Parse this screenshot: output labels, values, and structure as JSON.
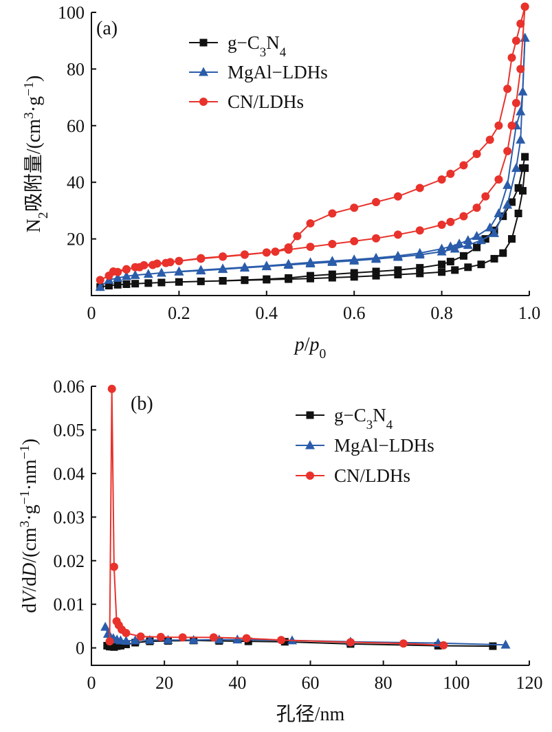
{
  "chart_data": [
    {
      "type": "line",
      "panel_label": "(a)",
      "xlabel": "p/p0",
      "ylabel": "N2吸附量/(cm3·g−1)",
      "xlim": [
        0,
        1.0
      ],
      "ylim": [
        0,
        100
      ],
      "xticks": [
        "0",
        "0.2",
        "0.4",
        "0.6",
        "0.8",
        "1.0"
      ],
      "yticks": [
        "20",
        "40",
        "60",
        "80",
        "100"
      ],
      "xtick_values": [
        0,
        0.2,
        0.4,
        0.6,
        0.8,
        1.0
      ],
      "ytick_values": [
        20,
        40,
        60,
        80,
        100
      ],
      "legend_position": "top-right",
      "series": [
        {
          "name": "g-C3N4",
          "color": "#111111",
          "marker": "square",
          "adsorption": {
            "x": [
              0.02,
              0.04,
              0.06,
              0.08,
              0.1,
              0.13,
              0.16,
              0.2,
              0.25,
              0.3,
              0.35,
              0.4,
              0.45,
              0.5,
              0.55,
              0.6,
              0.65,
              0.7,
              0.75,
              0.8,
              0.83,
              0.86,
              0.89,
              0.92,
              0.94,
              0.96,
              0.975,
              0.985,
              0.99
            ],
            "y": [
              3,
              3.5,
              3.8,
              4,
              4.2,
              4.4,
              4.6,
              4.8,
              5,
              5.2,
              5.4,
              5.6,
              5.8,
              6,
              6.3,
              6.6,
              7,
              7.4,
              7.8,
              8.3,
              9,
              10,
              11,
              13,
              15,
              20,
              29,
              37,
              45
            ]
          },
          "desorption": {
            "x": [
              0.99,
              0.985,
              0.975,
              0.96,
              0.94,
              0.92,
              0.9,
              0.88,
              0.85,
              0.82,
              0.8,
              0.75,
              0.7,
              0.65,
              0.6,
              0.55,
              0.5,
              0.45,
              0.4,
              0.35,
              0.3
            ],
            "y": [
              49,
              45,
              38,
              33,
              28,
              23,
              20,
              17,
              14,
              12,
              11,
              9.8,
              9,
              8.5,
              8,
              7.5,
              7,
              6.2,
              5.8,
              5.5,
              5.2
            ]
          }
        },
        {
          "name": "MgAl-LDHs",
          "color": "#2a5caa",
          "marker": "triangle",
          "adsorption": {
            "x": [
              0.02,
              0.04,
              0.06,
              0.08,
              0.1,
              0.13,
              0.16,
              0.2,
              0.25,
              0.3,
              0.35,
              0.4,
              0.45,
              0.5,
              0.55,
              0.6,
              0.65,
              0.7,
              0.75,
              0.8,
              0.83,
              0.86,
              0.89,
              0.92,
              0.95,
              0.97,
              0.98,
              0.99
            ],
            "y": [
              3,
              5.5,
              6.2,
              6.8,
              7.2,
              7.6,
              8,
              8.4,
              8.8,
              9.3,
              9.8,
              10.3,
              10.8,
              11.3,
              11.8,
              12.3,
              12.9,
              13.6,
              14.4,
              15.5,
              16.5,
              17.8,
              19.5,
              22,
              32,
              45,
              55,
              91
            ]
          },
          "desorption": {
            "x": [
              0.99,
              0.985,
              0.98,
              0.97,
              0.95,
              0.93,
              0.91,
              0.88,
              0.86,
              0.84,
              0.82,
              0.8,
              0.75,
              0.7,
              0.65,
              0.6,
              0.55,
              0.5,
              0.45,
              0.4,
              0.35,
              0.3,
              0.25,
              0.2
            ],
            "y": [
              91,
              72,
              65,
              60,
              39,
              29,
              24,
              21,
              19.5,
              18.3,
              17.3,
              16.5,
              15,
              14,
              13.3,
              12.7,
              12.2,
              11.7,
              11.1,
              10.5,
              10,
              9.5,
              9,
              8.5
            ]
          }
        },
        {
          "name": "CN/LDHs",
          "color": "#e8322b",
          "marker": "circle",
          "adsorption": {
            "x": [
              0.02,
              0.04,
              0.06,
              0.08,
              0.1,
              0.12,
              0.15,
              0.18,
              0.2,
              0.25,
              0.3,
              0.35,
              0.4,
              0.45,
              0.5,
              0.55,
              0.6,
              0.65,
              0.7,
              0.75,
              0.8,
              0.82,
              0.85,
              0.88,
              0.9,
              0.93,
              0.95,
              0.96,
              0.97,
              0.98,
              0.99
            ],
            "y": [
              5.5,
              7,
              8.3,
              9.2,
              10,
              10.7,
              11.3,
              11.8,
              12.2,
              13,
              13.7,
              14.4,
              15.2,
              16.2,
              17.2,
              18.2,
              19.2,
              20.2,
              21.5,
              23,
              25,
              26,
              28,
              31,
              35,
              41,
              51,
              60,
              68,
              80,
              102
            ]
          },
          "desorption": {
            "x": [
              0.99,
              0.98,
              0.97,
              0.96,
              0.95,
              0.93,
              0.91,
              0.88,
              0.85,
              0.82,
              0.8,
              0.75,
              0.7,
              0.65,
              0.6,
              0.55,
              0.5,
              0.47,
              0.45,
              0.42,
              0.4,
              0.35,
              0.3,
              0.25,
              0.2,
              0.17,
              0.14,
              0.11,
              0.08,
              0.05
            ],
            "y": [
              102,
              96,
              90,
              84,
              73,
              60,
              55,
              50,
              46,
              43,
              41,
              38,
              35,
              33,
              31,
              29,
              25.5,
              21,
              17,
              15.5,
              15.2,
              14.5,
              13.8,
              13.2,
              12.2,
              11.5,
              10.8,
              10,
              9.3,
              8.5
            ]
          }
        }
      ]
    },
    {
      "type": "line",
      "panel_label": "(b)",
      "xlabel": "孔径/nm",
      "ylabel": "dV/dD/(cm3·g−1·nm−1)",
      "xlim": [
        0,
        120
      ],
      "ylim": [
        -0.004,
        0.06
      ],
      "xticks": [
        "0",
        "20",
        "40",
        "60",
        "80",
        "100",
        "120"
      ],
      "yticks": [
        "0",
        "0.01",
        "0.02",
        "0.03",
        "0.04",
        "0.05",
        "0.06"
      ],
      "xtick_values": [
        0,
        20,
        40,
        60,
        80,
        100,
        120
      ],
      "ytick_values": [
        0,
        0.01,
        0.02,
        0.03,
        0.04,
        0.05,
        0.06
      ],
      "legend_position": "top-right",
      "series": [
        {
          "name": "g-C3N4",
          "color": "#111111",
          "marker": "square",
          "x": [
            4.3,
            5,
            5.6,
            6.2,
            7,
            8,
            9.5,
            12,
            16,
            21,
            28,
            35,
            43,
            53,
            71,
            95,
            110
          ],
          "y": [
            0.0005,
            0.0003,
            0.0003,
            0.0002,
            0.0004,
            0.0005,
            0.0008,
            0.0012,
            0.0015,
            0.0016,
            0.0017,
            0.0016,
            0.0015,
            0.0014,
            0.0009,
            0.0005,
            0.0004
          ]
        },
        {
          "name": "MgAl-LDHs",
          "color": "#2a5caa",
          "marker": "triangle",
          "x": [
            3.8,
            4.5,
            5.2,
            6,
            7,
            8,
            9.5,
            12,
            16,
            21,
            28,
            35,
            40,
            55,
            71,
            95,
            113.5
          ],
          "y": [
            0.0048,
            0.0032,
            0.0025,
            0.0022,
            0.0019,
            0.0017,
            0.0016,
            0.0017,
            0.0018,
            0.0018,
            0.0018,
            0.0019,
            0.0019,
            0.0017,
            0.0014,
            0.0011,
            0.0007
          ]
        },
        {
          "name": "CN/LDHs",
          "color": "#e8322b",
          "marker": "circle",
          "x": [
            5,
            5.6,
            6.2,
            6.9,
            7.5,
            8.3,
            9.5,
            13.5,
            19,
            25,
            33.5,
            42.5,
            52,
            71,
            85.5,
            96.5
          ],
          "y": [
            0.0015,
            0.0594,
            0.0186,
            0.0061,
            0.0052,
            0.0042,
            0.0034,
            0.0026,
            0.0025,
            0.0024,
            0.0024,
            0.0022,
            0.0018,
            0.0013,
            0.001,
            0.0006
          ]
        }
      ]
    }
  ]
}
